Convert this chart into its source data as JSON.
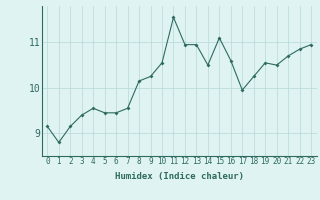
{
  "x": [
    0,
    1,
    2,
    3,
    4,
    5,
    6,
    7,
    8,
    9,
    10,
    11,
    12,
    13,
    14,
    15,
    16,
    17,
    18,
    19,
    20,
    21,
    22,
    23
  ],
  "y": [
    9.15,
    8.8,
    9.15,
    9.4,
    9.55,
    9.45,
    9.45,
    9.55,
    10.15,
    10.25,
    10.55,
    11.55,
    10.95,
    10.95,
    10.5,
    11.1,
    10.6,
    9.95,
    10.25,
    10.55,
    10.5,
    10.7,
    10.85,
    10.95
  ],
  "line_color": "#2e6b5e",
  "marker": "D",
  "marker_size": 2,
  "bg_color": "#dff3f3",
  "grid_color": "#b8d8d8",
  "tick_color": "#2e6b5e",
  "xlabel": "Humidex (Indice chaleur)",
  "xlabel_color": "#2e6b5e",
  "xlim": [
    -0.5,
    23.5
  ],
  "ylim": [
    8.5,
    11.8
  ],
  "yticks": [
    9,
    10,
    11
  ],
  "xticks": [
    0,
    1,
    2,
    3,
    4,
    5,
    6,
    7,
    8,
    9,
    10,
    11,
    12,
    13,
    14,
    15,
    16,
    17,
    18,
    19,
    20,
    21,
    22,
    23
  ],
  "xlabel_fontsize": 6.5,
  "tick_fontsize": 5.5
}
